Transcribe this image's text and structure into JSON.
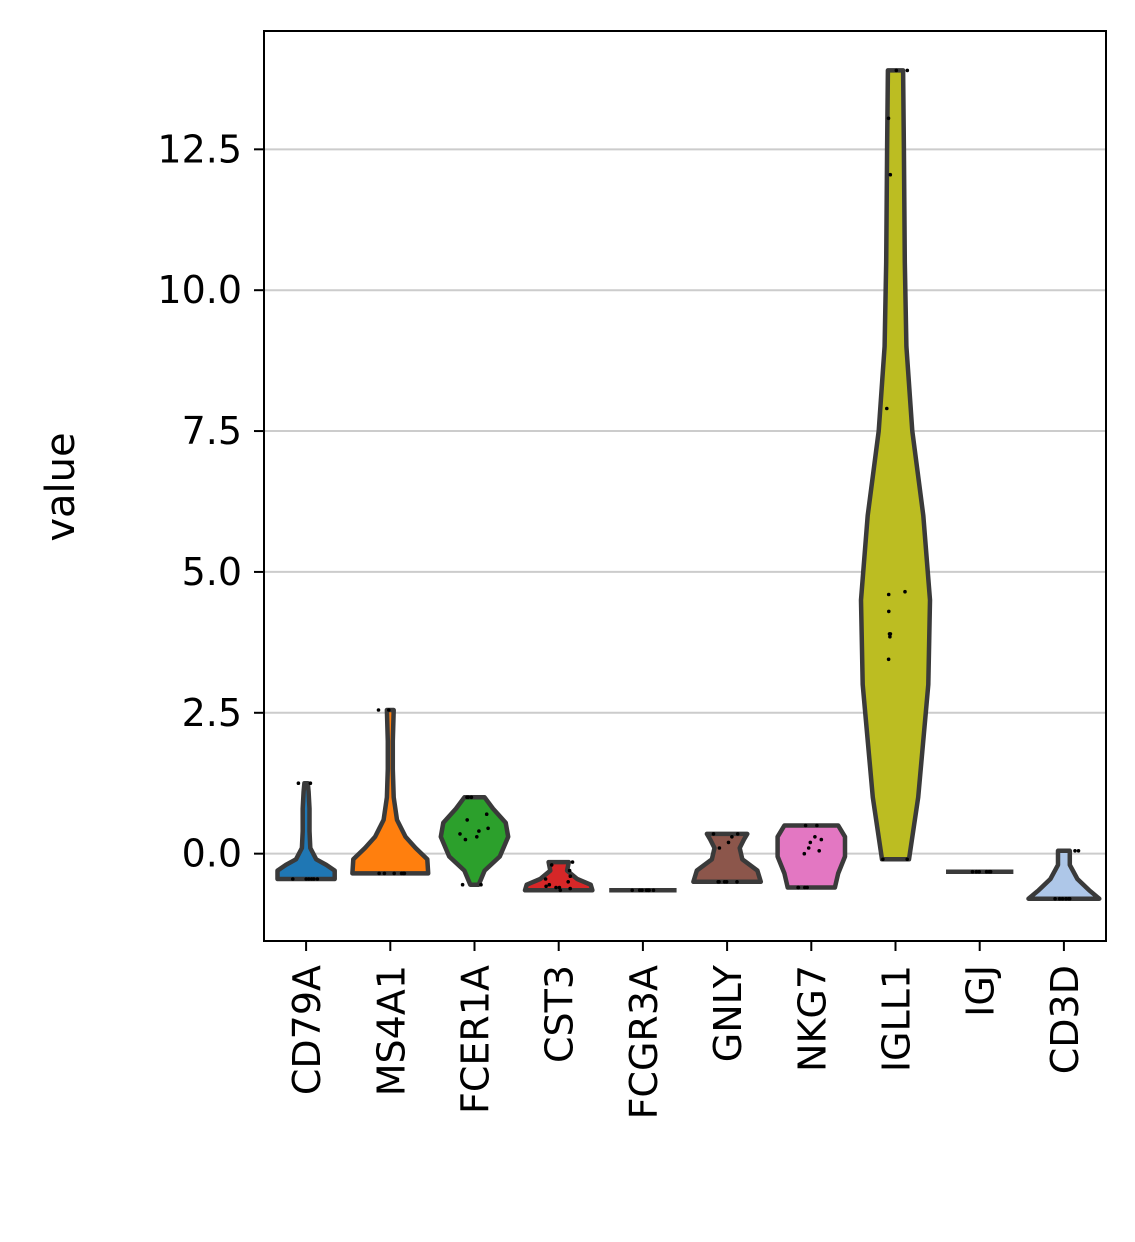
{
  "chart_data": {
    "type": "violin",
    "title": "",
    "xlabel": "",
    "ylabel": "value",
    "categories": [
      "CD79A",
      "MS4A1",
      "FCER1A",
      "CST3",
      "FCGR3A",
      "GNLY",
      "NKG7",
      "IGLL1",
      "IGJ",
      "CD3D"
    ],
    "ylim": [
      -1.55,
      14.6
    ],
    "yticks": [
      0.0,
      2.5,
      5.0,
      7.5,
      10.0,
      12.5
    ],
    "ytick_labels": [
      "0.0",
      "2.5",
      "5.0",
      "7.5",
      "10.0",
      "12.5"
    ],
    "grid": "horizontal",
    "legend": "none",
    "series": [
      {
        "category": "CD79A",
        "color": "#1f77b4",
        "min": -0.45,
        "max": 1.25,
        "profile": [
          [
            -0.45,
            0.34
          ],
          [
            -0.3,
            0.34
          ],
          [
            -0.2,
            0.24
          ],
          [
            -0.1,
            0.12
          ],
          [
            0.1,
            0.05
          ],
          [
            0.4,
            0.04
          ],
          [
            0.8,
            0.04
          ],
          [
            1.1,
            0.03
          ],
          [
            1.25,
            0.02
          ]
        ],
        "points": [
          -0.45,
          -0.45,
          -0.45,
          -0.45,
          -0.45,
          -0.45,
          1.25,
          1.25
        ]
      },
      {
        "category": "MS4A1",
        "color": "#ff7f0e",
        "min": -0.35,
        "max": 2.55,
        "profile": [
          [
            -0.35,
            0.45
          ],
          [
            -0.1,
            0.44
          ],
          [
            0.1,
            0.3
          ],
          [
            0.3,
            0.18
          ],
          [
            0.6,
            0.08
          ],
          [
            1.0,
            0.04
          ],
          [
            1.5,
            0.03
          ],
          [
            2.0,
            0.03
          ],
          [
            2.55,
            0.04
          ]
        ],
        "points": [
          -0.35,
          -0.35,
          -0.35,
          -0.35,
          -0.35,
          -0.35,
          2.55,
          2.55
        ]
      },
      {
        "category": "FCER1A",
        "color": "#2ca02c",
        "min": -0.55,
        "max": 1.0,
        "profile": [
          [
            -0.55,
            0.05
          ],
          [
            -0.3,
            0.12
          ],
          [
            -0.05,
            0.3
          ],
          [
            0.3,
            0.4
          ],
          [
            0.55,
            0.37
          ],
          [
            0.8,
            0.22
          ],
          [
            1.0,
            0.12
          ]
        ],
        "points": [
          -0.55,
          -0.55,
          0.25,
          0.3,
          0.35,
          0.4,
          0.45,
          0.6,
          0.7,
          1.0,
          1.0,
          1.0
        ]
      },
      {
        "category": "CST3",
        "color": "#d62728",
        "min": -0.65,
        "max": -0.15,
        "profile": [
          [
            -0.65,
            0.4
          ],
          [
            -0.55,
            0.38
          ],
          [
            -0.45,
            0.22
          ],
          [
            -0.3,
            0.1
          ],
          [
            -0.15,
            0.12
          ]
        ],
        "points": [
          -0.65,
          -0.62,
          -0.6,
          -0.6,
          -0.58,
          -0.55,
          -0.5,
          -0.45,
          -0.4,
          -0.3,
          -0.2,
          -0.15
        ]
      },
      {
        "category": "FCGR3A",
        "color": "#9467bd",
        "min": -0.65,
        "max": -0.65,
        "profile": [
          [
            -0.65,
            0.4
          ]
        ],
        "points": [
          -0.65,
          -0.65,
          -0.65,
          -0.65,
          -0.65,
          -0.65,
          -0.65,
          -0.65
        ]
      },
      {
        "category": "GNLY",
        "color": "#8c564b",
        "min": -0.5,
        "max": 0.35,
        "profile": [
          [
            -0.5,
            0.4
          ],
          [
            -0.3,
            0.36
          ],
          [
            -0.1,
            0.18
          ],
          [
            0.1,
            0.15
          ],
          [
            0.25,
            0.2
          ],
          [
            0.35,
            0.24
          ]
        ],
        "points": [
          -0.5,
          -0.5,
          -0.5,
          -0.5,
          -0.5,
          0.1,
          0.2,
          0.3,
          0.35,
          0.35
        ]
      },
      {
        "category": "NKG7",
        "color": "#e377c2",
        "min": -0.6,
        "max": 0.5,
        "profile": [
          [
            -0.6,
            0.28
          ],
          [
            -0.35,
            0.32
          ],
          [
            -0.05,
            0.4
          ],
          [
            0.3,
            0.4
          ],
          [
            0.5,
            0.32
          ]
        ],
        "points": [
          -0.6,
          -0.6,
          -0.6,
          -0.6,
          0.0,
          0.05,
          0.1,
          0.2,
          0.25,
          0.3,
          0.5,
          0.5
        ]
      },
      {
        "category": "IGLL1",
        "color": "#bcbd22",
        "min": -0.1,
        "max": 13.9,
        "profile": [
          [
            -0.1,
            0.16
          ],
          [
            1.0,
            0.27
          ],
          [
            3.0,
            0.39
          ],
          [
            4.5,
            0.41
          ],
          [
            6.0,
            0.33
          ],
          [
            7.5,
            0.2
          ],
          [
            9.0,
            0.13
          ],
          [
            10.5,
            0.11
          ],
          [
            12.5,
            0.1
          ],
          [
            13.9,
            0.09
          ]
        ],
        "points": [
          -0.1,
          -0.1,
          3.45,
          3.85,
          3.9,
          3.9,
          4.3,
          4.6,
          4.65,
          7.9,
          12.05,
          13.05,
          13.9,
          13.9
        ]
      },
      {
        "category": "IGJ",
        "color": "#7f7f7f",
        "min": -0.32,
        "max": -0.32,
        "profile": [
          [
            -0.32,
            0.4
          ]
        ],
        "points": [
          -0.32,
          -0.32,
          -0.32,
          -0.32,
          -0.32,
          -0.32
        ]
      },
      {
        "category": "CD3D",
        "color": "#aec7e8",
        "min": -0.8,
        "max": 0.05,
        "profile": [
          [
            -0.8,
            0.42
          ],
          [
            -0.65,
            0.3
          ],
          [
            -0.45,
            0.16
          ],
          [
            -0.2,
            0.07
          ],
          [
            0.05,
            0.07
          ]
        ],
        "points": [
          -0.8,
          -0.8,
          -0.8,
          -0.8,
          -0.8,
          -0.8,
          0.05,
          0.05
        ]
      }
    ]
  }
}
